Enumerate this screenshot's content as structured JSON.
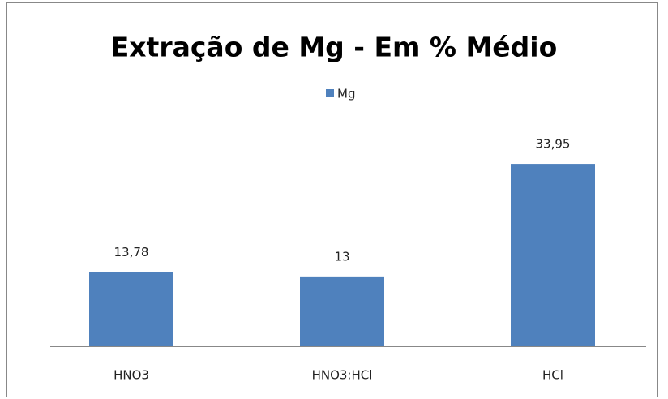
{
  "chart_data": {
    "type": "bar",
    "title": "Extração de Mg - Em % Médio",
    "categories": [
      "HNO3",
      "HNO3:HCl",
      "HCl"
    ],
    "series": [
      {
        "name": "Mg",
        "color": "#4f81bd",
        "values": [
          13.78,
          13,
          33.95
        ],
        "value_labels": [
          "13,78",
          "13",
          "33,95"
        ]
      }
    ],
    "ylim": [
      0,
      40
    ],
    "legend": "top"
  }
}
